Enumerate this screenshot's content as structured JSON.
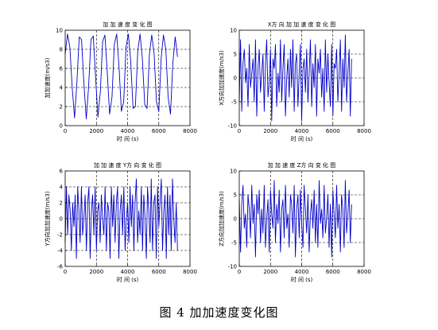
{
  "caption": "图 4  加加速度变化图",
  "chart_data": [
    {
      "type": "line",
      "title": "加 加 速 度 变 化 图",
      "xlabel": "时 间 (s)",
      "ylabel": "加加速度(m/s3)",
      "xlim": [
        0,
        8000
      ],
      "ylim": [
        0,
        10
      ],
      "xticks": [
        0,
        2000,
        4000,
        6000,
        8000
      ],
      "yticks": [
        0,
        2,
        4,
        6,
        8,
        10
      ],
      "grid": "dashed",
      "color": "#0000c8",
      "series": [
        {
          "x": [
            0,
            150,
            300,
            450,
            600,
            750,
            900,
            1050,
            1200,
            1350,
            1500,
            1650,
            1800,
            1950,
            2100,
            2250,
            2400,
            2550,
            2700,
            2850,
            3000,
            3150,
            3300,
            3450,
            3600,
            3750,
            3900,
            4050,
            4200,
            4350,
            4500,
            4650,
            4800,
            4950,
            5100,
            5250,
            5400,
            5550,
            5700,
            5850,
            6000,
            6150,
            6300,
            6450,
            6600,
            6750,
            6900,
            7050,
            7200
          ],
          "y": [
            7.5,
            9.6,
            8.2,
            4.0,
            0.8,
            4.5,
            9.3,
            9.0,
            4.5,
            0.7,
            4.0,
            9.0,
            9.4,
            5.0,
            0.9,
            3.5,
            8.8,
            9.5,
            5.5,
            1.2,
            3.0,
            8.5,
            9.6,
            6.2,
            1.5,
            2.5,
            8.2,
            9.6,
            6.8,
            1.8,
            2.0,
            7.8,
            9.6,
            7.0,
            2.2,
            1.8,
            7.5,
            9.5,
            7.5,
            2.5,
            1.5,
            7.0,
            9.5,
            8.0,
            3.0,
            1.2,
            6.5,
            9.3,
            7.2
          ]
        }
      ]
    },
    {
      "type": "line",
      "title": "X方 向 加 加 速 度 变 化 图",
      "xlabel": "时 间 (s)",
      "ylabel": "X方向加加速度(m/s3)",
      "xlim": [
        0,
        8000
      ],
      "ylim": [
        -10,
        10
      ],
      "xticks": [
        0,
        2000,
        4000,
        6000,
        8000
      ],
      "yticks": [
        -10,
        -5,
        0,
        5,
        10
      ],
      "grid": "dashed",
      "color": "#0000c8",
      "series": [
        {
          "x": [
            0,
            80,
            160,
            240,
            320,
            400,
            480,
            560,
            640,
            720,
            800,
            880,
            960,
            1040,
            1120,
            1200,
            1280,
            1360,
            1440,
            1520,
            1600,
            1680,
            1760,
            1840,
            1920,
            2000,
            2080,
            2160,
            2240,
            2320,
            2400,
            2480,
            2560,
            2640,
            2720,
            2800,
            2880,
            2960,
            3040,
            3120,
            3200,
            3280,
            3360,
            3440,
            3520,
            3600,
            3680,
            3760,
            3840,
            3920,
            4000,
            4080,
            4160,
            4240,
            4320,
            4400,
            4480,
            4560,
            4640,
            4720,
            4800,
            4880,
            4960,
            5040,
            5120,
            5200,
            5280,
            5360,
            5440,
            5520,
            5600,
            5680,
            5760,
            5840,
            5920,
            6000,
            6080,
            6160,
            6240,
            6320,
            6400,
            6480,
            6560,
            6640,
            6720,
            6800,
            6880,
            6960,
            7040,
            7120,
            7200
          ],
          "y": [
            -5,
            8,
            -7,
            3,
            6,
            -1,
            2,
            -6,
            7,
            -2,
            1,
            4,
            -5,
            8,
            -8,
            2,
            6,
            -3,
            1,
            5,
            -7,
            3,
            8,
            -4,
            -1,
            6,
            -9,
            4,
            2,
            7,
            -6,
            1,
            -3,
            8,
            -5,
            2,
            7,
            -8,
            0,
            4,
            -4,
            6,
            -2,
            8,
            -7,
            3,
            5,
            -6,
            1,
            7,
            -9,
            2,
            4,
            -3,
            6,
            -5,
            1,
            8,
            -6,
            3,
            -2,
            7,
            -8,
            4,
            1,
            6,
            -4,
            2,
            -7,
            8,
            -3,
            5,
            -1,
            -6,
            7,
            -8,
            3,
            2,
            6,
            -5,
            1,
            8,
            -7,
            4,
            -2,
            9,
            -5,
            1,
            6,
            -8,
            4
          ]
        }
      ]
    },
    {
      "type": "line",
      "title": "加 加 速 度 Y方 向 变 化 图",
      "xlabel": "时 间 (s)",
      "ylabel": "Y方向加加速度(m/s3)",
      "xlim": [
        0,
        8000
      ],
      "ylim": [
        -6,
        6
      ],
      "xticks": [
        0,
        2000,
        4000,
        6000,
        8000
      ],
      "yticks": [
        -6,
        -4,
        -2,
        0,
        2,
        4,
        6
      ],
      "grid": "dashed",
      "color": "#0000c8",
      "series": [
        {
          "x": [
            0,
            80,
            160,
            240,
            320,
            400,
            480,
            560,
            640,
            720,
            800,
            880,
            960,
            1040,
            1120,
            1200,
            1280,
            1360,
            1440,
            1520,
            1600,
            1680,
            1760,
            1840,
            1920,
            2000,
            2080,
            2160,
            2240,
            2320,
            2400,
            2480,
            2560,
            2640,
            2720,
            2800,
            2880,
            2960,
            3040,
            3120,
            3200,
            3280,
            3360,
            3440,
            3520,
            3600,
            3680,
            3760,
            3840,
            3920,
            4000,
            4080,
            4160,
            4240,
            4320,
            4400,
            4480,
            4560,
            4640,
            4720,
            4800,
            4880,
            4960,
            5040,
            5120,
            5200,
            5280,
            5360,
            5440,
            5520,
            5600,
            5680,
            5760,
            5840,
            5920,
            6000,
            6080,
            6160,
            6240,
            6320,
            6400,
            6480,
            6560,
            6640,
            6720,
            6800,
            6880,
            6960,
            7040,
            7120,
            7200
          ],
          "y": [
            -3,
            4,
            -2,
            3,
            1,
            -4,
            2,
            -1,
            3,
            -5,
            4,
            1,
            -3,
            4,
            -2,
            0,
            3,
            -4,
            2,
            4,
            -5,
            1,
            3,
            -2,
            4,
            -4,
            1,
            2,
            -3,
            3,
            0,
            -2,
            4,
            -4,
            2,
            1,
            -5,
            4,
            -1,
            3,
            -3,
            2,
            4,
            -5,
            1,
            3,
            -2,
            4,
            -4,
            0,
            2,
            -3,
            4,
            -1,
            3,
            -4,
            2,
            5,
            -3,
            1,
            -2,
            4,
            -4,
            3,
            0,
            -5,
            4,
            1,
            -3,
            5,
            -4,
            2,
            3,
            -5,
            4,
            -1,
            2,
            5,
            -4,
            1,
            3,
            -5,
            4,
            -2,
            3,
            -4,
            5,
            0,
            -3,
            2,
            -4
          ]
        }
      ]
    },
    {
      "type": "line",
      "title": "加 加 速 度 Z方 向 变 化 图",
      "xlabel": "时 间 (s)",
      "ylabel": "Z方向加加速度(m/s3)",
      "xlim": [
        0,
        8000
      ],
      "ylim": [
        -10,
        10
      ],
      "xticks": [
        0,
        2000,
        4000,
        6000,
        8000
      ],
      "yticks": [
        -10,
        -5,
        0,
        5,
        10
      ],
      "grid": "dashed",
      "color": "#0000c8",
      "series": [
        {
          "x": [
            0,
            80,
            160,
            240,
            320,
            400,
            480,
            560,
            640,
            720,
            800,
            880,
            960,
            1040,
            1120,
            1200,
            1280,
            1360,
            1440,
            1520,
            1600,
            1680,
            1760,
            1840,
            1920,
            2000,
            2080,
            2160,
            2240,
            2320,
            2400,
            2480,
            2560,
            2640,
            2720,
            2800,
            2880,
            2960,
            3040,
            3120,
            3200,
            3280,
            3360,
            3440,
            3520,
            3600,
            3680,
            3760,
            3840,
            3920,
            4000,
            4080,
            4160,
            4240,
            4320,
            4400,
            4480,
            4560,
            4640,
            4720,
            4800,
            4880,
            4960,
            5040,
            5120,
            5200,
            5280,
            5360,
            5440,
            5520,
            5600,
            5680,
            5760,
            5840,
            5920,
            6000,
            6080,
            6160,
            6240,
            6320,
            6400,
            6480,
            6560,
            6640,
            6720,
            6800,
            6880,
            6960,
            7040,
            7120,
            7200
          ],
          "y": [
            4,
            -7,
            3,
            7,
            -2,
            1,
            -6,
            5,
            2,
            -4,
            7,
            -1,
            3,
            -8,
            5,
            1,
            6,
            -5,
            2,
            -3,
            7,
            -6,
            0,
            4,
            -7,
            6,
            1,
            -2,
            8,
            -5,
            3,
            -1,
            6,
            -7,
            2,
            4,
            -4,
            7,
            -2,
            1,
            -6,
            5,
            3,
            -3,
            7,
            -8,
            2,
            5,
            -4,
            6,
            -1,
            -6,
            7,
            2,
            -3,
            5,
            -7,
            1,
            4,
            -2,
            6,
            -5,
            3,
            -6,
            8,
            -1,
            2,
            -4,
            7,
            -3,
            0,
            5,
            -6,
            3,
            -8,
            6,
            1,
            -4,
            7,
            -2,
            3,
            -7,
            5,
            2,
            -6,
            8,
            -3,
            1,
            6,
            -5,
            3
          ]
        }
      ]
    }
  ]
}
